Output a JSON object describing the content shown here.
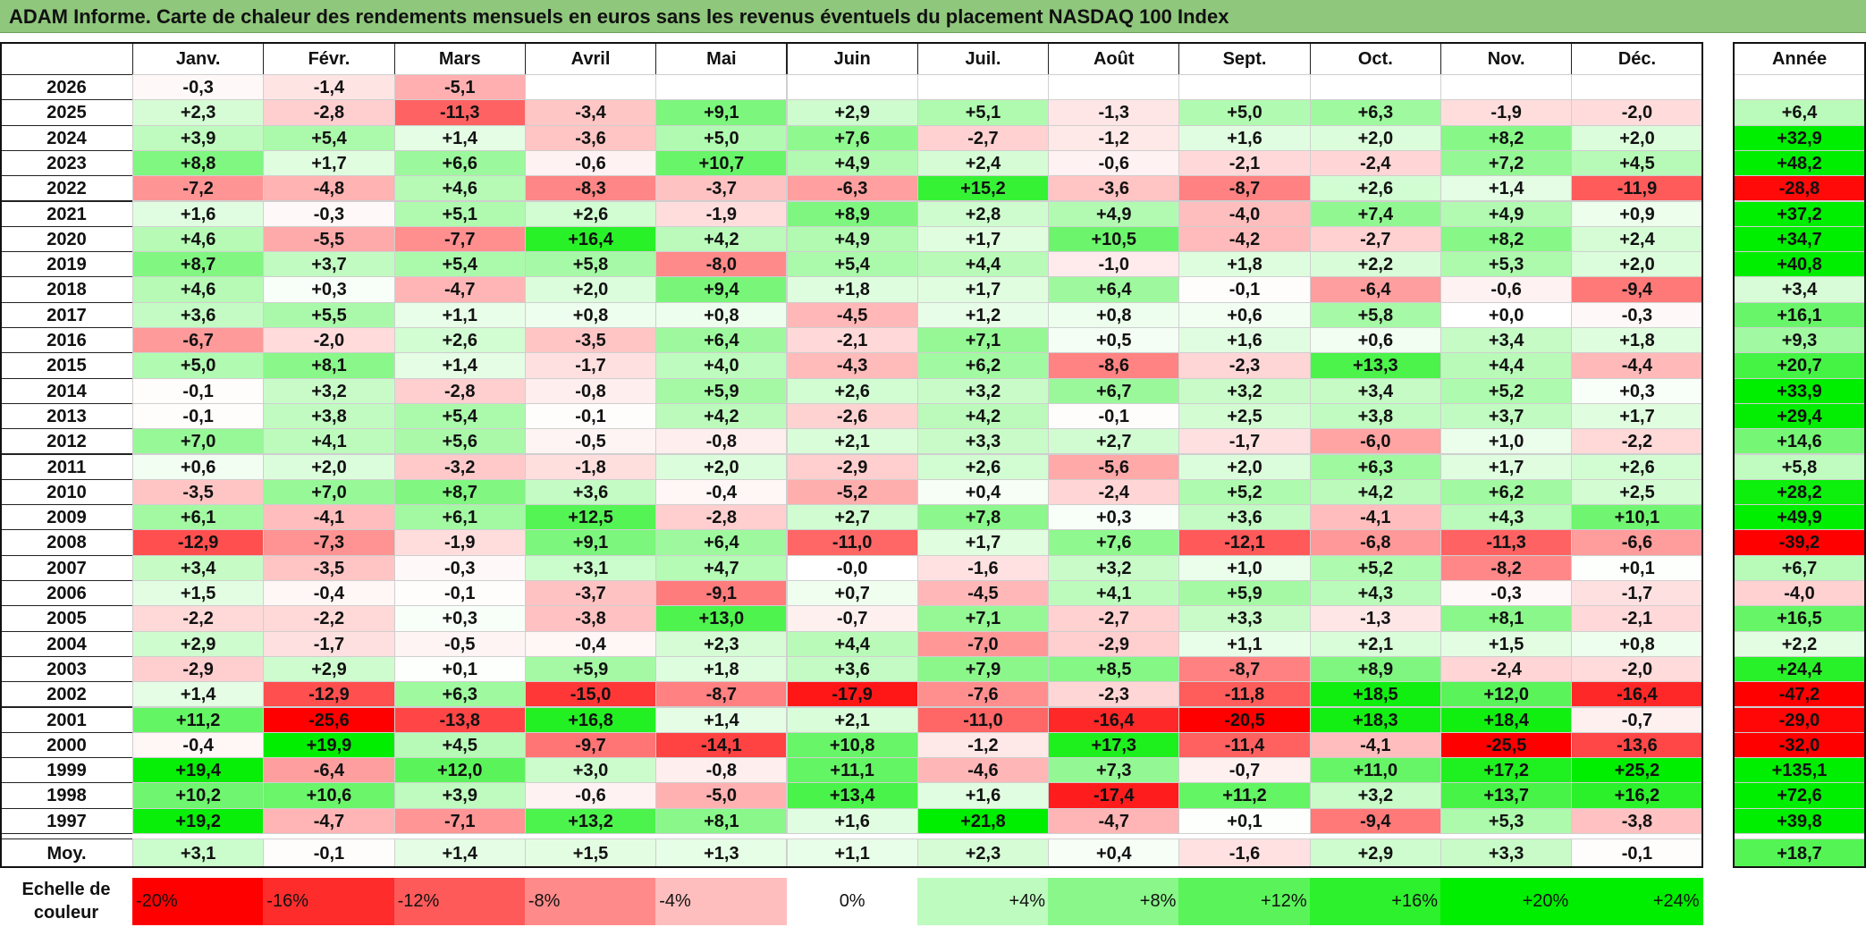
{
  "title": "ADAM Informe. Carte de chaleur des rendements mensuels en euros sans les revenus éventuels du placement NASDAQ 100 Index",
  "chart_data": {
    "type": "heatmap",
    "title": "ADAM Informe. Carte de chaleur des rendements mensuels en euros sans les revenus éventuels du placement NASDAQ 100 Index",
    "months": [
      "Janv.",
      "Févr.",
      "Mars",
      "Avril",
      "Mai",
      "Juin",
      "Juil.",
      "Août",
      "Sept.",
      "Oct.",
      "Nov.",
      "Déc."
    ],
    "year_header": "Année",
    "rows": [
      {
        "year": "2026",
        "months": [
          "-0,3",
          "-1,4",
          "-5,1",
          "",
          "",
          "",
          "",
          "",
          "",
          "",
          "",
          ""
        ],
        "annual": ""
      },
      {
        "year": "2025",
        "months": [
          "+2,3",
          "-2,8",
          "-11,3",
          "-3,4",
          "+9,1",
          "+2,9",
          "+5,1",
          "-1,3",
          "+5,0",
          "+6,3",
          "-1,9",
          "-2,0"
        ],
        "annual": "+6,4"
      },
      {
        "year": "2024",
        "months": [
          "+3,9",
          "+5,4",
          "+1,4",
          "-3,6",
          "+5,0",
          "+7,6",
          "-2,7",
          "-1,2",
          "+1,6",
          "+2,0",
          "+8,2",
          "+2,0"
        ],
        "annual": "+32,9"
      },
      {
        "year": "2023",
        "months": [
          "+8,8",
          "+1,7",
          "+6,6",
          "-0,6",
          "+10,7",
          "+4,9",
          "+2,4",
          "-0,6",
          "-2,1",
          "-2,4",
          "+7,2",
          "+4,5"
        ],
        "annual": "+48,2"
      },
      {
        "year": "2022",
        "months": [
          "-7,2",
          "-4,8",
          "+4,6",
          "-8,3",
          "-3,7",
          "-6,3",
          "+15,2",
          "-3,6",
          "-8,7",
          "+2,6",
          "+1,4",
          "-11,9"
        ],
        "annual": "-28,8"
      },
      {
        "year": "2021",
        "months": [
          "+1,6",
          "-0,3",
          "+5,1",
          "+2,6",
          "-1,9",
          "+8,9",
          "+2,8",
          "+4,9",
          "-4,0",
          "+7,4",
          "+4,9",
          "+0,9"
        ],
        "annual": "+37,2"
      },
      {
        "year": "2020",
        "months": [
          "+4,6",
          "-5,5",
          "-7,7",
          "+16,4",
          "+4,2",
          "+4,9",
          "+1,7",
          "+10,5",
          "-4,2",
          "-2,7",
          "+8,2",
          "+2,4"
        ],
        "annual": "+34,7"
      },
      {
        "year": "2019",
        "months": [
          "+8,7",
          "+3,7",
          "+5,4",
          "+5,8",
          "-8,0",
          "+5,4",
          "+4,4",
          "-1,0",
          "+1,8",
          "+2,2",
          "+5,3",
          "+2,0"
        ],
        "annual": "+40,8"
      },
      {
        "year": "2018",
        "months": [
          "+4,6",
          "+0,3",
          "-4,7",
          "+2,0",
          "+9,4",
          "+1,8",
          "+1,7",
          "+6,4",
          "-0,1",
          "-6,4",
          "-0,6",
          "-9,4"
        ],
        "annual": "+3,4"
      },
      {
        "year": "2017",
        "months": [
          "+3,6",
          "+5,5",
          "+1,1",
          "+0,8",
          "+0,8",
          "-4,5",
          "+1,2",
          "+0,8",
          "+0,6",
          "+5,8",
          "+0,0",
          "-0,3"
        ],
        "annual": "+16,1"
      },
      {
        "year": "2016",
        "months": [
          "-6,7",
          "-2,0",
          "+2,6",
          "-3,5",
          "+6,4",
          "-2,1",
          "+7,1",
          "+0,5",
          "+1,6",
          "+0,6",
          "+3,4",
          "+1,8"
        ],
        "annual": "+9,3"
      },
      {
        "year": "2015",
        "months": [
          "+5,0",
          "+8,1",
          "+1,4",
          "-1,7",
          "+4,0",
          "-4,3",
          "+6,2",
          "-8,6",
          "-2,3",
          "+13,3",
          "+4,4",
          "-4,4"
        ],
        "annual": "+20,7"
      },
      {
        "year": "2014",
        "months": [
          "-0,1",
          "+3,2",
          "-2,8",
          "-0,8",
          "+5,9",
          "+2,6",
          "+3,2",
          "+6,7",
          "+3,2",
          "+3,4",
          "+5,2",
          "+0,3"
        ],
        "annual": "+33,9"
      },
      {
        "year": "2013",
        "months": [
          "-0,1",
          "+3,8",
          "+5,4",
          "-0,1",
          "+4,2",
          "-2,6",
          "+4,2",
          "-0,1",
          "+2,5",
          "+3,8",
          "+3,7",
          "+1,7"
        ],
        "annual": "+29,4"
      },
      {
        "year": "2012",
        "months": [
          "+7,0",
          "+4,1",
          "+5,6",
          "-0,5",
          "-0,8",
          "+2,1",
          "+3,3",
          "+2,7",
          "-1,7",
          "-6,0",
          "+1,0",
          "-2,2"
        ],
        "annual": "+14,6"
      },
      {
        "year": "2011",
        "months": [
          "+0,6",
          "+2,0",
          "-3,2",
          "-1,8",
          "+2,0",
          "-2,9",
          "+2,6",
          "-5,6",
          "+2,0",
          "+6,3",
          "+1,7",
          "+2,6"
        ],
        "annual": "+5,8"
      },
      {
        "year": "2010",
        "months": [
          "-3,5",
          "+7,0",
          "+8,7",
          "+3,6",
          "-0,4",
          "-5,2",
          "+0,4",
          "-2,4",
          "+5,2",
          "+4,2",
          "+6,2",
          "+2,5"
        ],
        "annual": "+28,2"
      },
      {
        "year": "2009",
        "months": [
          "+6,1",
          "-4,1",
          "+6,1",
          "+12,5",
          "-2,8",
          "+2,7",
          "+7,8",
          "+0,3",
          "+3,6",
          "-4,1",
          "+4,3",
          "+10,1"
        ],
        "annual": "+49,9"
      },
      {
        "year": "2008",
        "months": [
          "-12,9",
          "-7,3",
          "-1,9",
          "+9,1",
          "+6,4",
          "-11,0",
          "+1,7",
          "+7,6",
          "-12,1",
          "-6,8",
          "-11,3",
          "-6,6"
        ],
        "annual": "-39,2"
      },
      {
        "year": "2007",
        "months": [
          "+3,4",
          "-3,5",
          "-0,3",
          "+3,1",
          "+4,7",
          "-0,0",
          "-1,6",
          "+3,2",
          "+1,0",
          "+5,2",
          "-8,2",
          "+0,1"
        ],
        "annual": "+6,7"
      },
      {
        "year": "2006",
        "months": [
          "+1,5",
          "-0,4",
          "-0,1",
          "-3,7",
          "-9,1",
          "+0,7",
          "-4,5",
          "+4,1",
          "+5,9",
          "+4,3",
          "-0,3",
          "-1,7"
        ],
        "annual": "-4,0"
      },
      {
        "year": "2005",
        "months": [
          "-2,2",
          "-2,2",
          "+0,3",
          "-3,8",
          "+13,0",
          "-0,7",
          "+7,1",
          "-2,7",
          "+3,3",
          "-1,3",
          "+8,1",
          "-2,1"
        ],
        "annual": "+16,5"
      },
      {
        "year": "2004",
        "months": [
          "+2,9",
          "-1,7",
          "-0,5",
          "-0,4",
          "+2,3",
          "+4,4",
          "-7,0",
          "-2,9",
          "+1,1",
          "+2,1",
          "+1,5",
          "+0,8"
        ],
        "annual": "+2,2"
      },
      {
        "year": "2003",
        "months": [
          "-2,9",
          "+2,9",
          "+0,1",
          "+5,9",
          "+1,8",
          "+3,6",
          "+7,9",
          "+8,5",
          "-8,7",
          "+8,9",
          "-2,4",
          "-2,0"
        ],
        "annual": "+24,4"
      },
      {
        "year": "2002",
        "months": [
          "+1,4",
          "-12,9",
          "+6,3",
          "-15,0",
          "-8,7",
          "-17,9",
          "-7,6",
          "-2,3",
          "-11,8",
          "+18,5",
          "+12,0",
          "-16,4"
        ],
        "annual": "-47,2"
      },
      {
        "year": "2001",
        "months": [
          "+11,2",
          "-25,6",
          "-13,8",
          "+16,8",
          "+1,4",
          "+2,1",
          "-11,0",
          "-16,4",
          "-20,5",
          "+18,3",
          "+18,4",
          "-0,7"
        ],
        "annual": "-29,0"
      },
      {
        "year": "2000",
        "months": [
          "-0,4",
          "+19,9",
          "+4,5",
          "-9,7",
          "-14,1",
          "+10,8",
          "-1,2",
          "+17,3",
          "-11,4",
          "-4,1",
          "-25,5",
          "-13,6"
        ],
        "annual": "-32,0"
      },
      {
        "year": "1999",
        "months": [
          "+19,4",
          "-6,4",
          "+12,0",
          "+3,0",
          "-0,8",
          "+11,1",
          "-4,6",
          "+7,3",
          "-0,7",
          "+11,0",
          "+17,2",
          "+25,2"
        ],
        "annual": "+135,1"
      },
      {
        "year": "1998",
        "months": [
          "+10,2",
          "+10,6",
          "+3,9",
          "-0,6",
          "-5,0",
          "+13,4",
          "+1,6",
          "-17,4",
          "+11,2",
          "+3,2",
          "+13,7",
          "+16,2"
        ],
        "annual": "+72,6"
      },
      {
        "year": "1997",
        "months": [
          "+19,2",
          "-4,7",
          "-7,1",
          "+13,2",
          "+8,1",
          "+1,6",
          "+21,8",
          "-4,7",
          "+0,1",
          "-9,4",
          "+5,3",
          "-3,8"
        ],
        "annual": "+39,8"
      }
    ],
    "average": {
      "label": "Moy.",
      "months": [
        "+3,1",
        "-0,1",
        "+1,4",
        "+1,5",
        "+1,3",
        "+1,1",
        "+2,3",
        "+0,4",
        "-1,6",
        "+2,9",
        "+3,3",
        "-0,1"
      ],
      "annual": "+18,7"
    },
    "legend": {
      "label": "Echelle de couleur",
      "steps": [
        "-20%",
        "-16%",
        "-12%",
        "-8%",
        "-4%",
        "0%",
        "+4%",
        "+8%",
        "+12%",
        "+16%",
        "+20%",
        "+24%"
      ]
    },
    "colors": {
      "negative": "#ff0000",
      "neutral": "#ffffff",
      "positive": "#00ee00"
    }
  }
}
